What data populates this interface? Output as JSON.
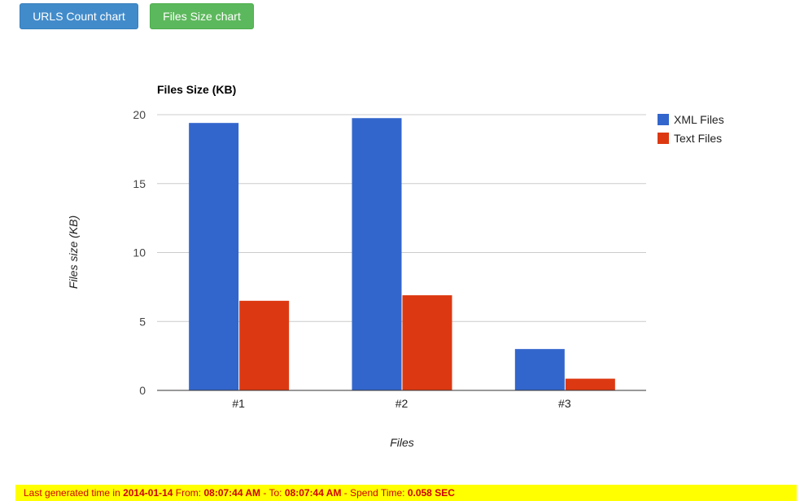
{
  "toolbar": {
    "urls_button_label": "URLS Count chart",
    "size_button_label": "Files Size chart"
  },
  "colors": {
    "xml": "#3366cc",
    "text": "#dc3912",
    "urls_button": "#428bca",
    "size_button": "#5cb85c",
    "footer_bg": "#ffff00",
    "footer_text": "#d00000"
  },
  "chart_data": {
    "type": "bar",
    "title": "Files Size (KB)",
    "xlabel": "Files",
    "ylabel": "Files size (KB)",
    "categories": [
      "#1",
      "#2",
      "#3"
    ],
    "series": [
      {
        "name": "XML Files",
        "values": [
          19.4,
          19.75,
          3.0
        ]
      },
      {
        "name": "Text Files",
        "values": [
          6.5,
          6.9,
          0.85
        ]
      }
    ],
    "ylim": [
      0,
      20
    ],
    "yticks": [
      "0",
      "5",
      "10",
      "15",
      "20"
    ],
    "grid": true,
    "legend": "right"
  },
  "footer": {
    "prefix": "Last generated time in ",
    "date": "2014-01-14",
    "from_label": " From: ",
    "from_time": "08:07:44 AM",
    "to_label": " - To: ",
    "to_time": "08:07:44 AM",
    "spend_label": " - Spend Time: ",
    "spend_value": "0.058 SEC"
  }
}
